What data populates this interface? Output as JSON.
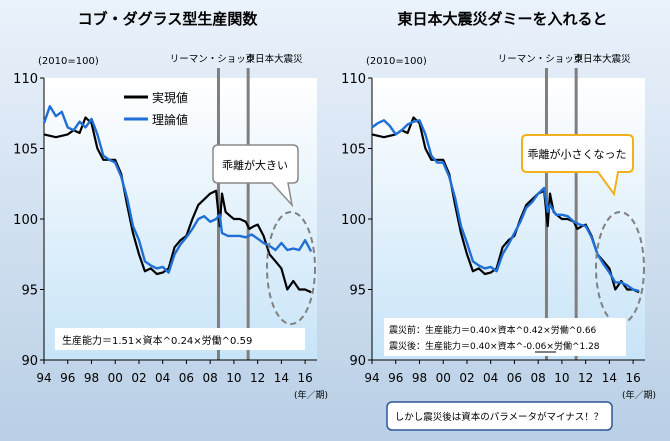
{
  "panels": [
    {
      "title": "コブ・ダグラス型生産関数",
      "index_label": "(2010=100)",
      "event_labels": [
        "リーマン・ショック",
        "東日本大震災"
      ],
      "legend": [
        "実現値",
        "理論値"
      ],
      "callout": "乖離が大きい",
      "formulas": [
        "生産能力＝1.51×資本^0.24×労働^0.59"
      ],
      "x_unit": "(年／期)"
    },
    {
      "title": "東日本大震災ダミーを入れると",
      "index_label": "(2010=100)",
      "event_labels": [
        "リーマン・ショック",
        "東日本大震災"
      ],
      "callout": "乖離が小さくなった",
      "formulas": [
        "震災前：生産能力＝0.40×資本^0.42×労働^0.66",
        "震災後：生産能力＝0.40×資本^-0.06×労働^1.28"
      ],
      "note": "しかし震災後は資本のパラメータがマイナス！？",
      "x_unit": "(年／期)"
    }
  ],
  "colors": {
    "actual": "#000000",
    "theory": "#1f6fd6",
    "event_line": "#7f7f7f"
  },
  "chart_data": [
    {
      "type": "line",
      "title": "コブ・ダグラス型生産関数",
      "x_ticks": [
        "94",
        "96",
        "98",
        "00",
        "02",
        "04",
        "06",
        "08",
        "10",
        "12",
        "14",
        "16"
      ],
      "y_ticks": [
        90,
        95,
        100,
        105,
        110
      ],
      "xlim": [
        1994,
        2017
      ],
      "ylim": [
        90,
        110
      ],
      "events": [
        2008.7,
        2011.2
      ],
      "series": [
        {
          "name": "実現値",
          "color": "#000000",
          "x": [
            1994,
            1995,
            1996,
            1996.5,
            1997,
            1997.5,
            1998,
            1998.5,
            1999,
            2000,
            2000.5,
            2001,
            2001.5,
            2002,
            2002.5,
            2003,
            2003.5,
            2004,
            2004.5,
            2005,
            2005.5,
            2006,
            2006.5,
            2007,
            2007.5,
            2008,
            2008.5,
            2008.8,
            2009,
            2009.3,
            2009.7,
            2010,
            2010.5,
            2011,
            2011.3,
            2011.7,
            2012,
            2012.5,
            2013,
            2013.5,
            2014,
            2014.5,
            2015,
            2015.5,
            2016,
            2016.5
          ],
          "y": [
            106.0,
            105.8,
            106.0,
            106.3,
            106.1,
            107.2,
            106.8,
            105.0,
            104.2,
            104.2,
            103.2,
            101.0,
            99.0,
            97.5,
            96.3,
            96.5,
            96.1,
            96.2,
            96.5,
            98.0,
            98.5,
            98.8,
            100.0,
            101.0,
            101.4,
            101.8,
            102.0,
            99.5,
            101.8,
            100.5,
            100.2,
            100.0,
            100.0,
            99.8,
            99.3,
            99.5,
            99.6,
            98.8,
            97.5,
            97.0,
            96.5,
            95.0,
            95.6,
            95.0,
            95.0,
            94.8
          ]
        },
        {
          "name": "理論値",
          "color": "#1f6fd6",
          "x": [
            1994,
            1994.5,
            1995,
            1995.5,
            1996,
            1996.5,
            1997,
            1997.5,
            1998,
            1998.5,
            1999,
            1999.5,
            2000,
            2000.5,
            2001,
            2001.5,
            2002,
            2002.5,
            2003,
            2003.5,
            2004,
            2004.5,
            2005,
            2005.5,
            2006,
            2006.5,
            2007,
            2007.5,
            2008,
            2008.5,
            2008.8,
            2009,
            2009.5,
            2010,
            2010.5,
            2011,
            2011.5,
            2012,
            2012.5,
            2013,
            2013.5,
            2014,
            2014.5,
            2015,
            2015.5,
            2016,
            2016.5
          ],
          "y": [
            106.8,
            108.0,
            107.3,
            107.6,
            106.5,
            106.3,
            106.9,
            106.5,
            107.1,
            106.0,
            104.5,
            104.2,
            104.0,
            103.0,
            101.5,
            99.5,
            98.5,
            97.0,
            96.7,
            96.5,
            96.6,
            96.2,
            97.5,
            98.2,
            98.7,
            99.3,
            100.0,
            100.2,
            99.8,
            100.0,
            100.3,
            99.0,
            98.8,
            98.8,
            98.8,
            98.7,
            98.9,
            98.6,
            98.3,
            98.1,
            97.8,
            98.3,
            97.8,
            97.9,
            97.8,
            98.5,
            97.7
          ]
        }
      ]
    },
    {
      "type": "line",
      "title": "東日本大震災ダミーを入れると",
      "x_ticks": [
        "94",
        "96",
        "98",
        "00",
        "02",
        "04",
        "06",
        "08",
        "10",
        "12",
        "14",
        "16"
      ],
      "y_ticks": [
        90,
        95,
        100,
        105,
        110
      ],
      "xlim": [
        1994,
        2017
      ],
      "ylim": [
        90,
        110
      ],
      "events": [
        2008.7,
        2011.2
      ],
      "series": [
        {
          "name": "実現値",
          "color": "#000000",
          "x": [
            1994,
            1995,
            1996,
            1996.5,
            1997,
            1997.5,
            1998,
            1998.5,
            1999,
            2000,
            2000.5,
            2001,
            2001.5,
            2002,
            2002.5,
            2003,
            2003.5,
            2004,
            2004.5,
            2005,
            2005.5,
            2006,
            2006.5,
            2007,
            2007.5,
            2008,
            2008.5,
            2008.8,
            2009,
            2009.3,
            2009.7,
            2010,
            2010.5,
            2011,
            2011.3,
            2011.7,
            2012,
            2012.5,
            2013,
            2013.5,
            2014,
            2014.5,
            2015,
            2015.5,
            2016,
            2016.5
          ],
          "y": [
            106.0,
            105.8,
            106.0,
            106.3,
            106.1,
            107.2,
            106.8,
            105.0,
            104.2,
            104.2,
            103.2,
            101.0,
            99.0,
            97.5,
            96.3,
            96.5,
            96.1,
            96.2,
            96.5,
            98.0,
            98.5,
            98.8,
            100.0,
            101.0,
            101.4,
            101.8,
            102.0,
            99.5,
            101.8,
            100.5,
            100.2,
            100.0,
            100.0,
            99.8,
            99.3,
            99.5,
            99.6,
            98.8,
            97.5,
            97.0,
            96.5,
            95.0,
            95.6,
            95.0,
            95.0,
            94.8
          ]
        },
        {
          "name": "理論値",
          "color": "#1f6fd6",
          "x": [
            1994,
            1994.5,
            1995,
            1995.5,
            1996,
            1996.5,
            1997,
            1997.5,
            1998,
            1998.5,
            1999,
            1999.5,
            2000,
            2000.5,
            2001,
            2001.5,
            2002,
            2002.5,
            2003,
            2003.5,
            2004,
            2004.5,
            2005,
            2005.5,
            2006,
            2006.5,
            2007,
            2007.5,
            2008,
            2008.5,
            2008.8,
            2009,
            2009.5,
            2010,
            2010.5,
            2011,
            2011.5,
            2012,
            2012.5,
            2013,
            2013.5,
            2014,
            2014.5,
            2015,
            2015.5,
            2016,
            2016.5
          ],
          "y": [
            106.5,
            106.8,
            107.0,
            106.6,
            106.0,
            106.3,
            106.7,
            106.9,
            107.0,
            106.0,
            104.5,
            104.0,
            104.0,
            103.0,
            101.5,
            99.5,
            98.3,
            97.0,
            96.7,
            96.5,
            96.6,
            96.3,
            97.5,
            98.2,
            99.0,
            99.8,
            100.8,
            101.2,
            101.8,
            102.2,
            100.5,
            101.0,
            100.3,
            100.3,
            100.2,
            99.8,
            99.6,
            99.5,
            98.7,
            97.5,
            96.8,
            96.2,
            95.5,
            95.5,
            95.3,
            95.0,
            94.9
          ]
        }
      ]
    }
  ]
}
